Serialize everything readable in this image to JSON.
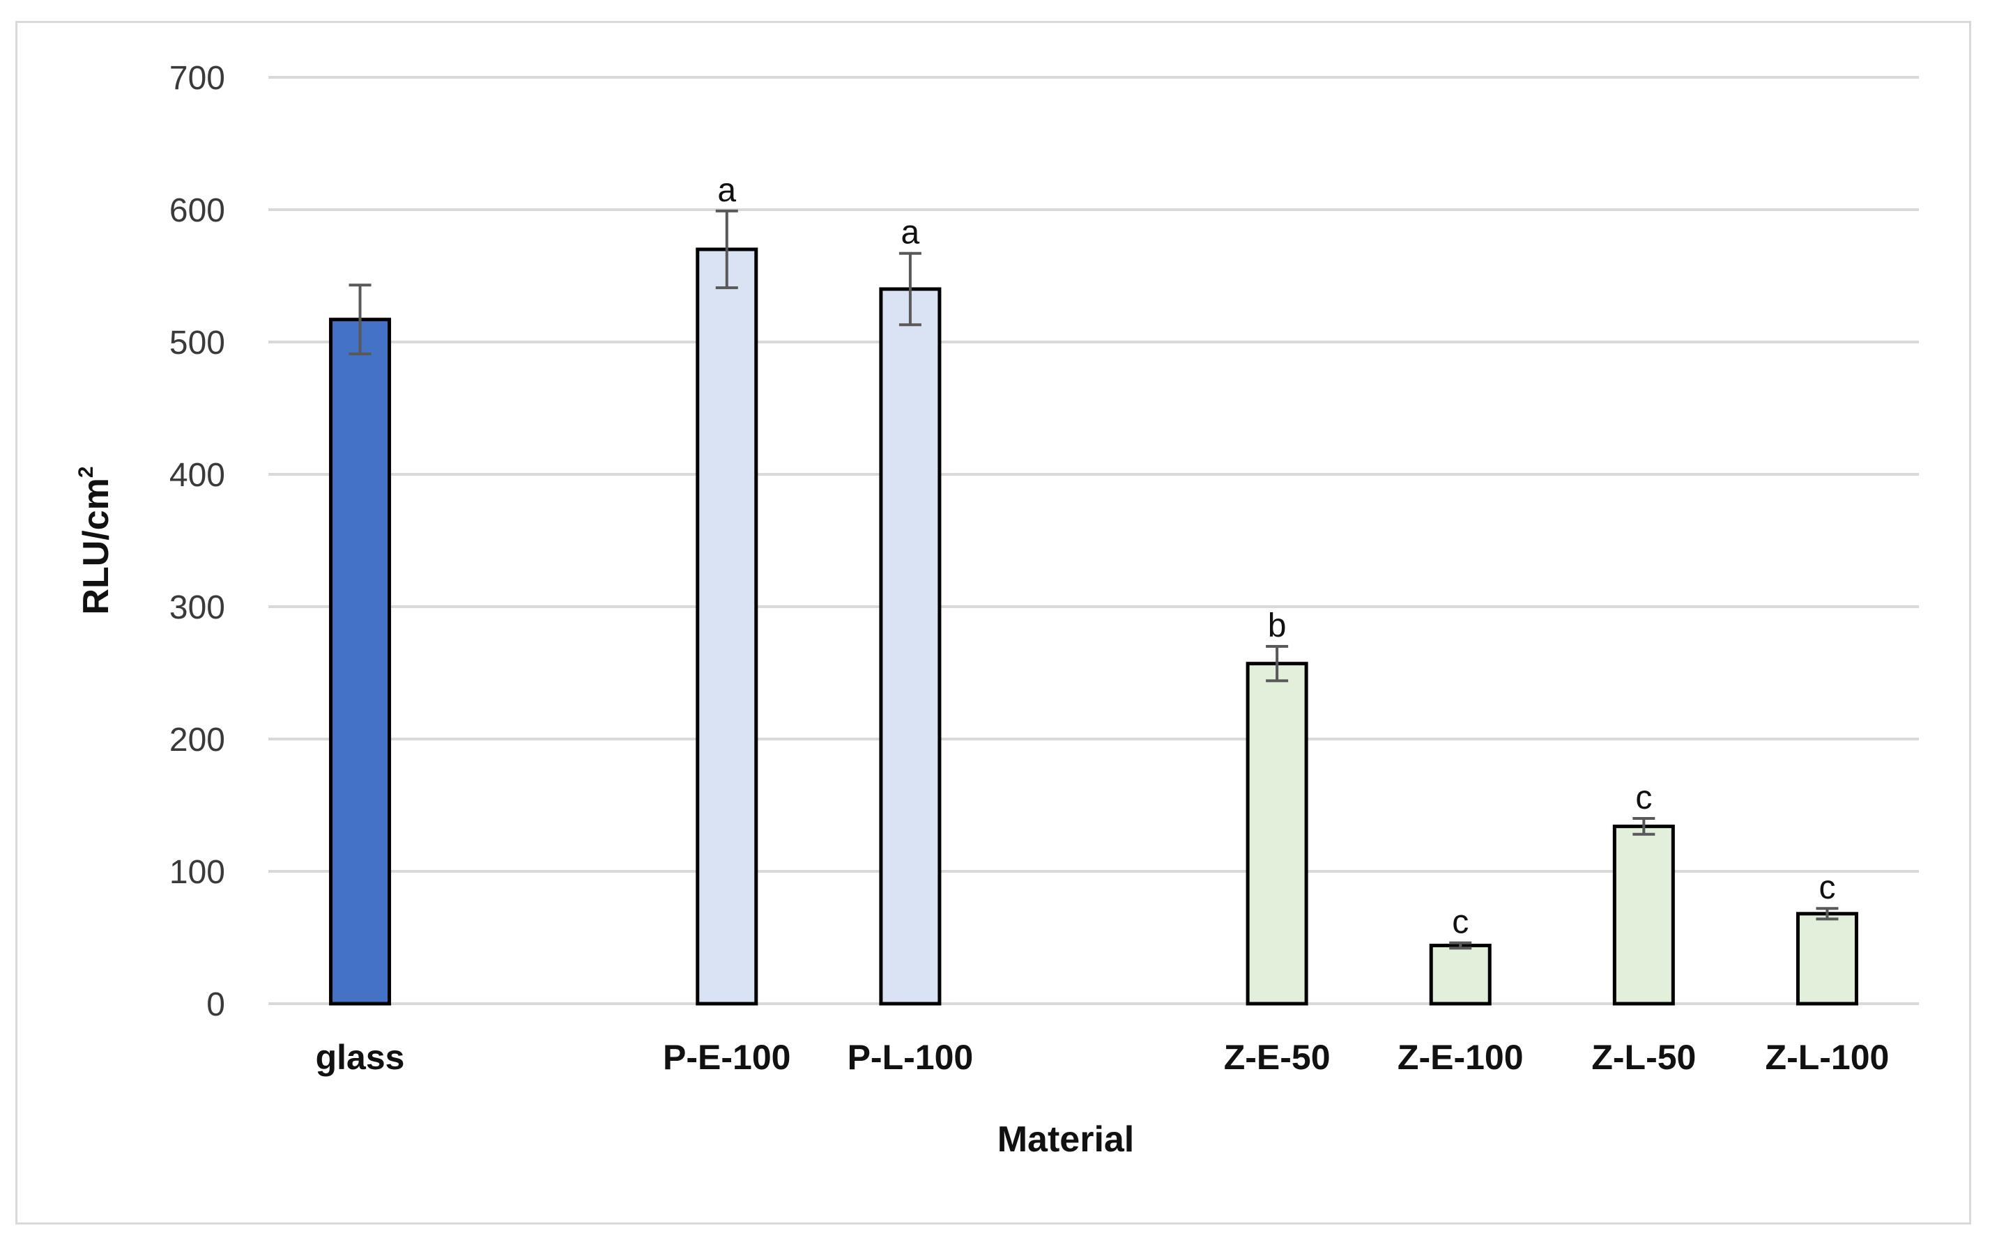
{
  "chart_data": {
    "type": "bar",
    "title": "",
    "xlabel": "Material",
    "ylabel": "RLU/cm",
    "ylabel_superscript": "2",
    "ylim": [
      0,
      700
    ],
    "yticks": [
      0,
      100,
      200,
      300,
      400,
      500,
      600,
      700
    ],
    "grid": true,
    "legend": "none",
    "categories": [
      "glass",
      "",
      "P-E-100",
      "P-L-100",
      "",
      "Z-E-50",
      "Z-E-100",
      "Z-L-50",
      "Z-L-100"
    ],
    "values": [
      517,
      null,
      570,
      540,
      null,
      257,
      44,
      134,
      68
    ],
    "errors": [
      26,
      null,
      29,
      27,
      null,
      13,
      2,
      6,
      4
    ],
    "significance": [
      "",
      "",
      "a",
      "a",
      "",
      "b",
      "c",
      "c",
      "c"
    ],
    "colors": [
      "#4472c4",
      "",
      "#dae3f3",
      "#dae3f3",
      "",
      "#e2efda",
      "#e2efda",
      "#e2efda",
      "#e2efda"
    ]
  }
}
